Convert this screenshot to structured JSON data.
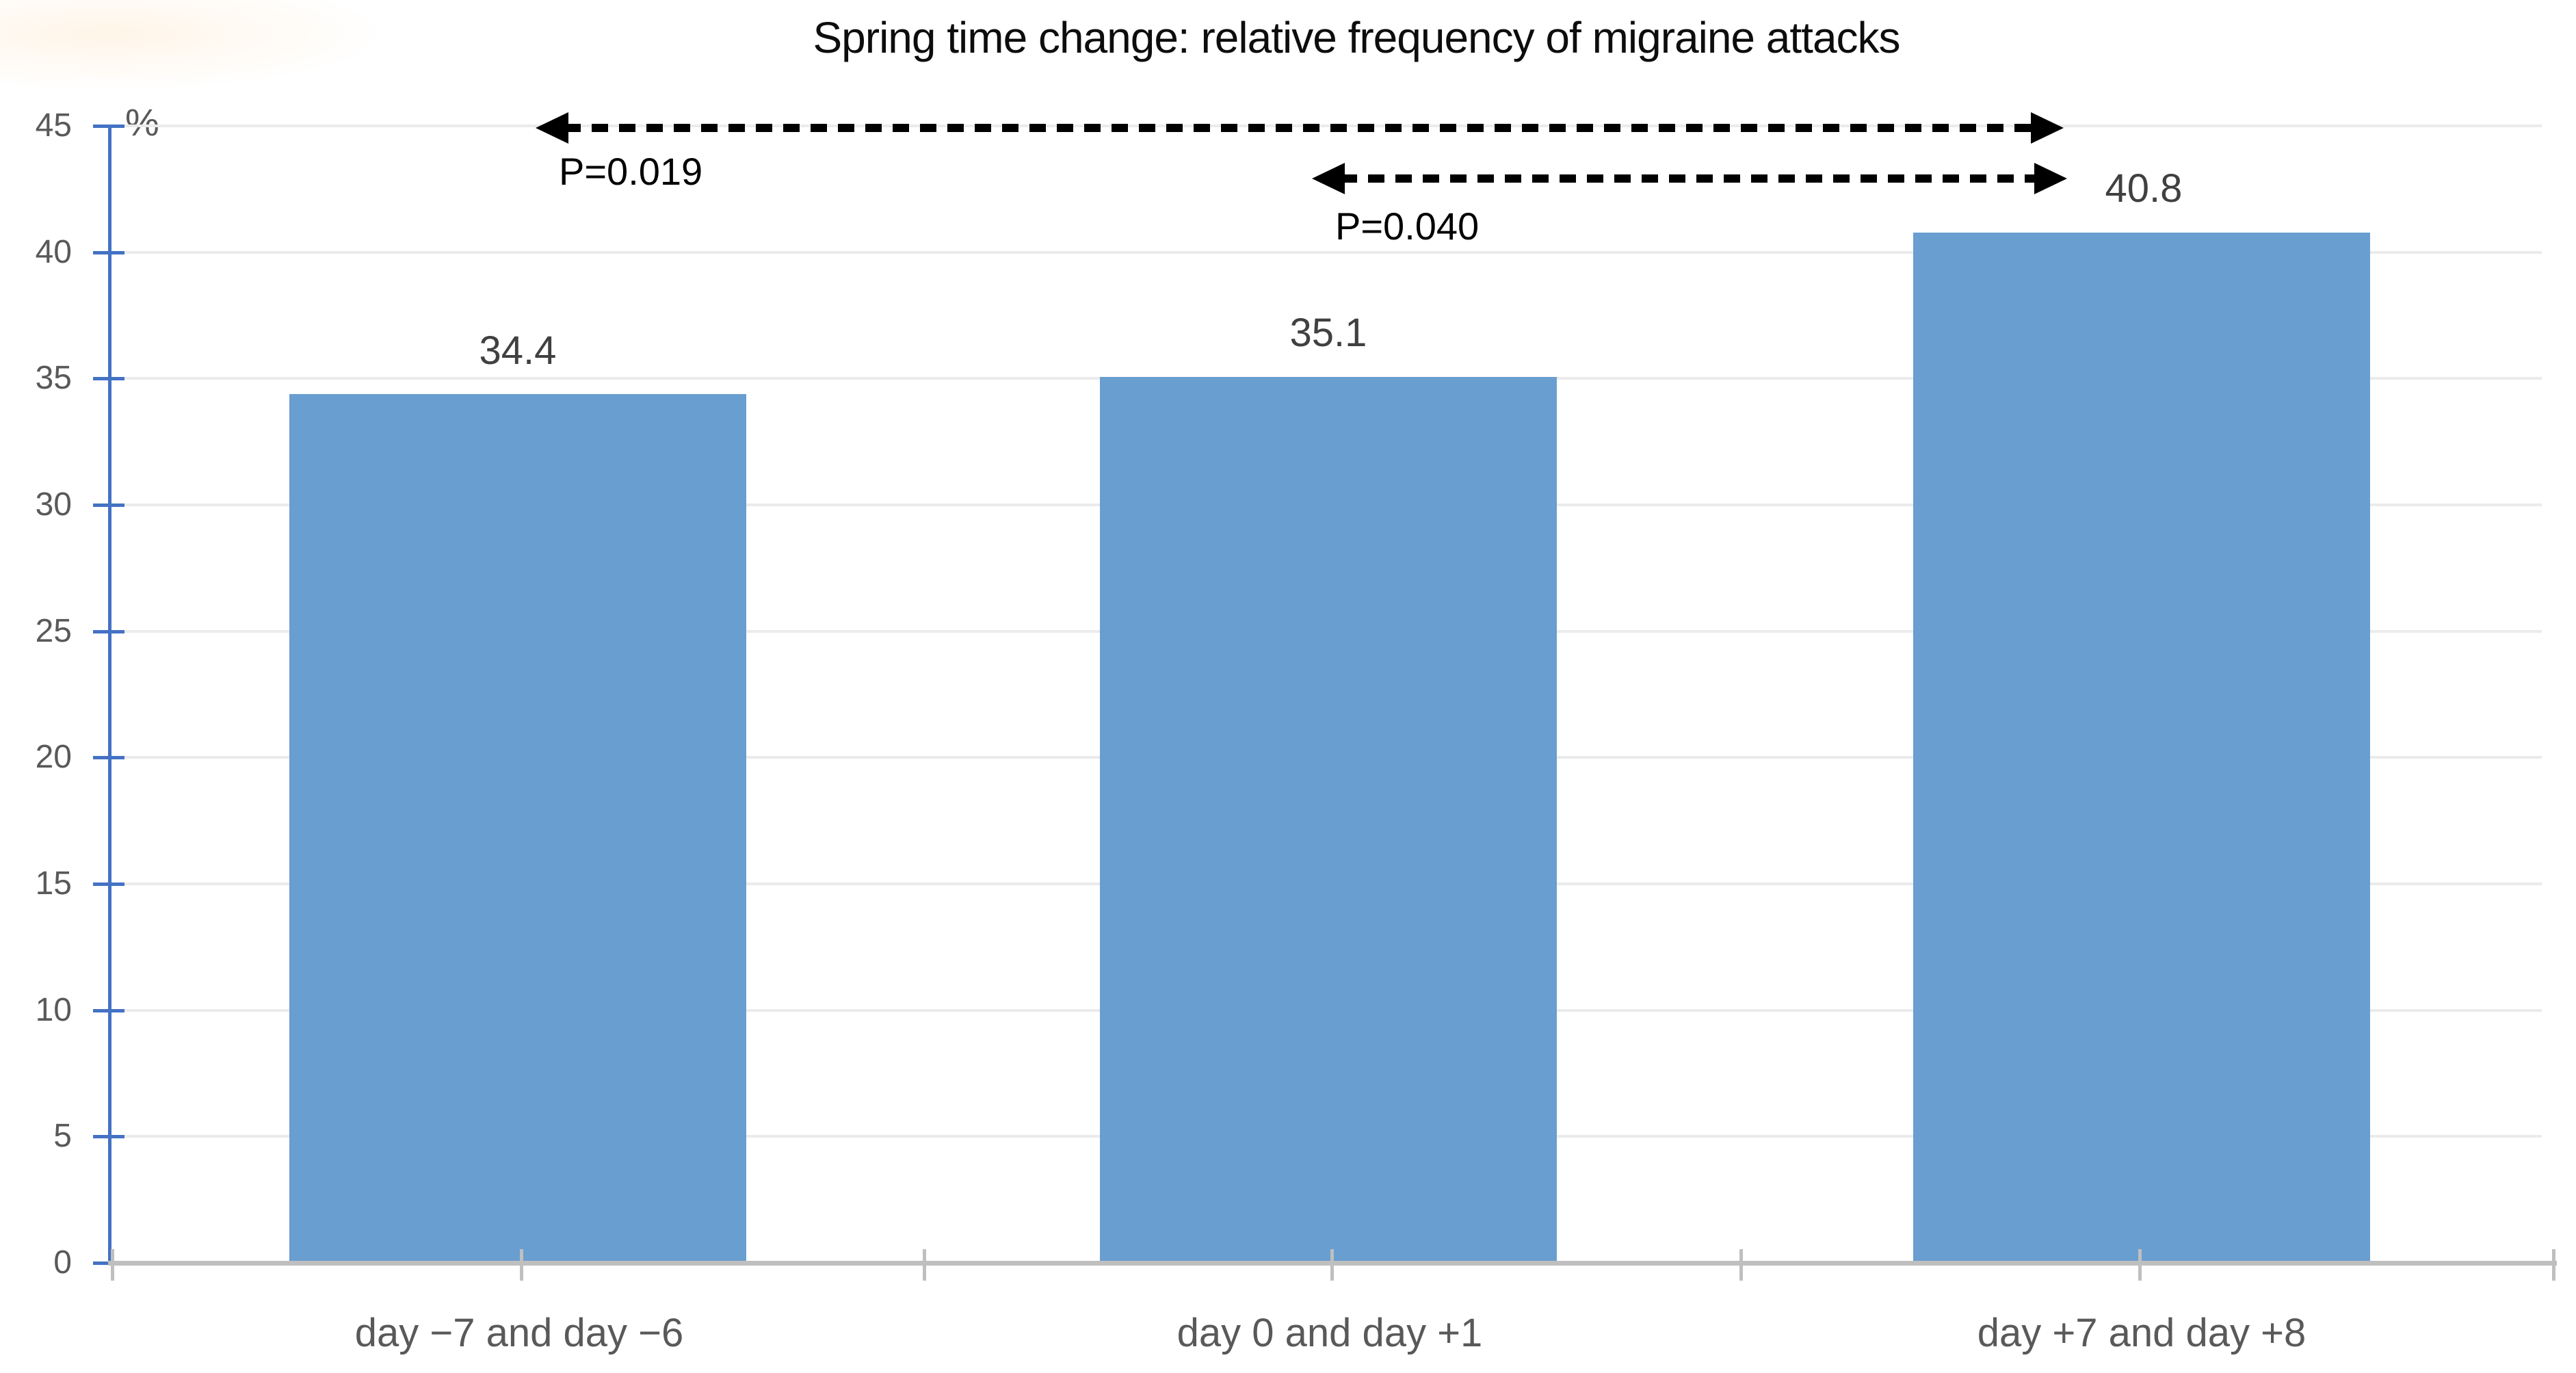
{
  "chart_data": {
    "type": "bar",
    "title": "Spring time change: relative frequency of migraine attacks",
    "ylabel": "%",
    "xlabel": "",
    "ylim": [
      0,
      45
    ],
    "ytick_step": 5,
    "yticks": [
      "45",
      "40",
      "35",
      "30",
      "25",
      "20",
      "15",
      "10",
      "5",
      "0"
    ],
    "grid": true,
    "legend": false,
    "categories": [
      "day −7 and day −6",
      "day 0 and day +1",
      "day +7 and day +8"
    ],
    "values": [
      34.4,
      35.1,
      40.8
    ],
    "value_labels": [
      "34.4",
      "35.1",
      "40.8"
    ],
    "annotations": [
      {
        "label": "P=0.019",
        "type": "double-headed-dashed-arrow",
        "between": [
          "day −7 and day −6",
          "day +7 and day +8"
        ]
      },
      {
        "label": "P=0.040",
        "type": "double-headed-dashed-arrow",
        "between": [
          "day 0 and day +1",
          "day +7 and day +8"
        ]
      }
    ],
    "colors": {
      "bar": "#699ED0",
      "y_axis": "#4472C4",
      "x_axis": "#BFBFBF",
      "gridline": "#EBEBEB",
      "tick_label": "#595959",
      "value_label": "#404040",
      "annotation": "#000000",
      "title": "#0D0D0D"
    }
  }
}
